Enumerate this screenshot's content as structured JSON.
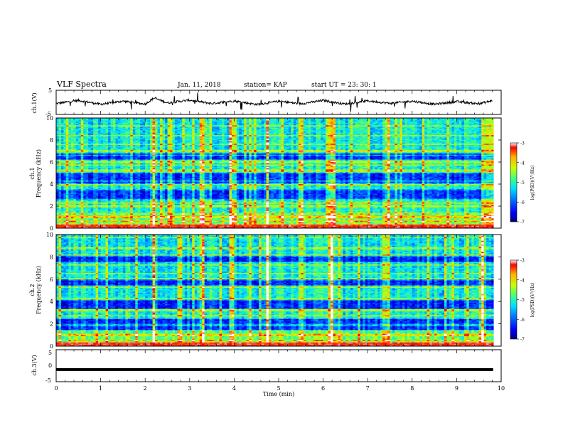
{
  "header": {
    "title": "VLF Spectra",
    "date": "Jan. 11, 2018",
    "station": "station= KAP",
    "start": "start  UT =   23: 30: 1"
  },
  "colors": {
    "colormap": [
      "#00007f",
      "#0000ff",
      "#0080ff",
      "#00e0ff",
      "#40ff80",
      "#c8ff00",
      "#ffb000",
      "#ff0000",
      "#ffffff"
    ],
    "trace": "#000000"
  },
  "chart_data": [
    {
      "type": "line",
      "name": "ch1-voltage",
      "ylabel": "ch.1(V)",
      "ylim": [
        -5,
        5
      ],
      "yticks": [
        "5",
        "-5"
      ],
      "xlim": [
        0,
        10
      ],
      "trace_description": "noisy waveform oscillating roughly between -1.5 and 1.5 V with sharp spikes",
      "approx_points": [
        [
          0,
          -0.5
        ],
        [
          0.5,
          0.8
        ],
        [
          1,
          -0.8
        ],
        [
          1.5,
          0.5
        ],
        [
          2,
          -0.7
        ],
        [
          2.2,
          1.8
        ],
        [
          2.5,
          -0.2
        ],
        [
          3,
          0.9
        ],
        [
          3.5,
          -0.5
        ],
        [
          4,
          0.6
        ],
        [
          4.5,
          -0.9
        ],
        [
          5,
          0.4
        ],
        [
          5.5,
          -0.6
        ],
        [
          6,
          0.8
        ],
        [
          6.5,
          -0.7
        ],
        [
          7,
          0.6
        ],
        [
          7.5,
          -0.4
        ],
        [
          8,
          0.5
        ],
        [
          8.5,
          -0.8
        ],
        [
          9,
          0.3
        ],
        [
          9.5,
          -0.6
        ],
        [
          9.8,
          0.7
        ]
      ]
    },
    {
      "type": "heatmap",
      "name": "ch1-spectrogram",
      "ylabel": "ch.1\nFrequency  (kHz)",
      "ylim": [
        0,
        10
      ],
      "yticks": [
        "0",
        "2",
        "4",
        "6",
        "8",
        "10"
      ],
      "xlim": [
        0,
        10
      ],
      "colorbar": {
        "label": "log(PSD)(V²/Hz)",
        "range": [
          -7,
          -3
        ],
        "ticks": [
          "-3",
          "-4",
          "-5",
          "-6",
          "-7"
        ]
      },
      "broadband_bursts_min": [
        2.2,
        3.3,
        3.95,
        4.75,
        5.5,
        6.2,
        7.45,
        9.6
      ]
    },
    {
      "type": "heatmap",
      "name": "ch2-spectrogram",
      "ylabel": "ch.2\nFrequency  (kHz)",
      "ylim": [
        0,
        10
      ],
      "yticks": [
        "0",
        "2",
        "4",
        "6",
        "8",
        "10"
      ],
      "xlim": [
        0,
        10
      ],
      "colorbar": {
        "label": "log(PSD)(V²/Hz)",
        "range": [
          -7,
          -3
        ],
        "ticks": [
          "-3",
          "-4",
          "-5",
          "-6",
          "-7"
        ]
      },
      "broadband_bursts_min": [
        2.2,
        3.3,
        3.95,
        4.75,
        5.5,
        6.2,
        7.45,
        9.6
      ]
    },
    {
      "type": "line",
      "name": "ch3-voltage",
      "ylabel": "ch.3(V)",
      "ylim": [
        -5,
        5
      ],
      "yticks": [
        "5",
        "0",
        "-5"
      ],
      "xlim": [
        0,
        10
      ],
      "constant_value": -1.2
    }
  ],
  "xaxis": {
    "label": "Time  (min)",
    "ticks": [
      "0",
      "1",
      "2",
      "3",
      "4",
      "5",
      "6",
      "7",
      "8",
      "9",
      "10"
    ]
  }
}
